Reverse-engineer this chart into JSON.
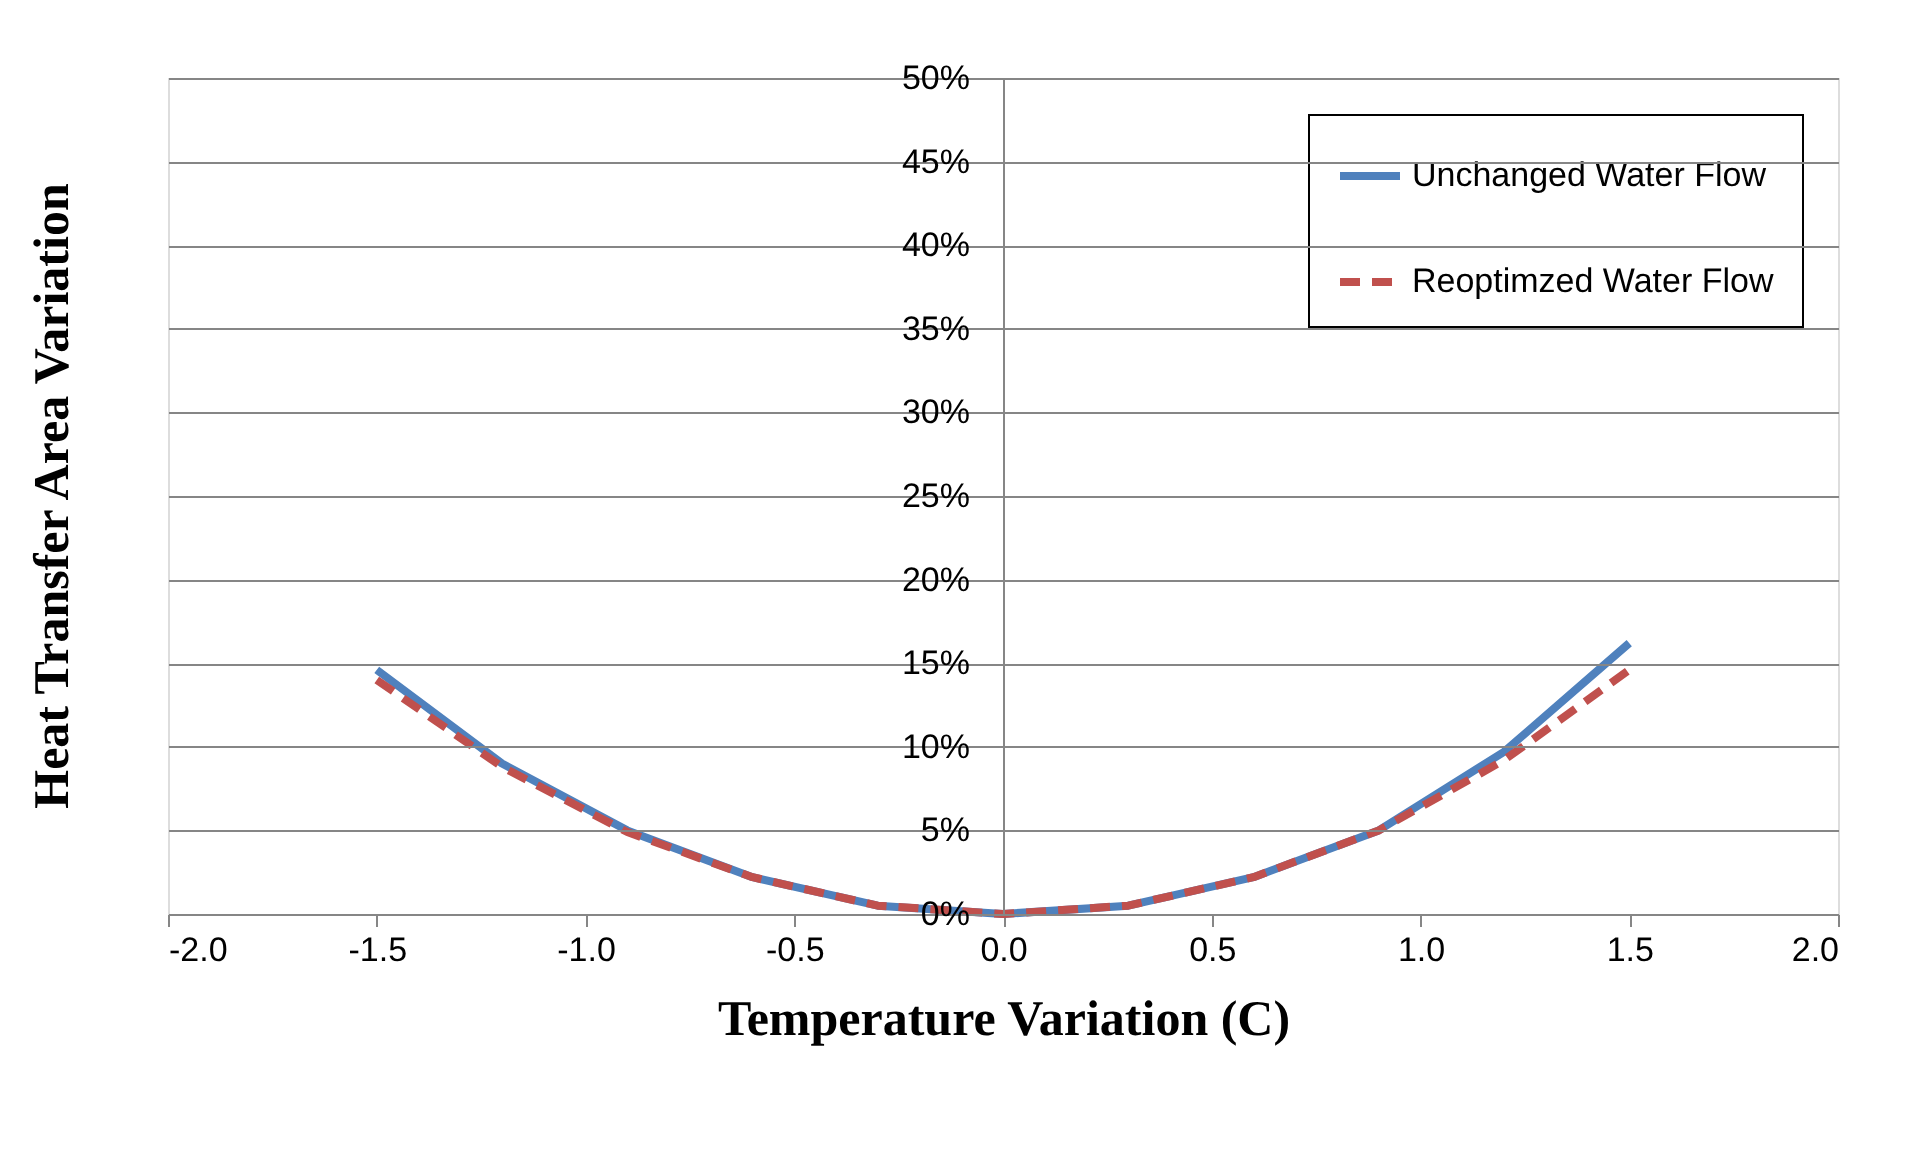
{
  "chart_data": {
    "type": "line",
    "xlabel": "Temperature Variation (C)",
    "ylabel": "Heat Transfer Area Variation",
    "x": [
      -1.5,
      -1.2,
      -0.9,
      -0.6,
      -0.3,
      0.0,
      0.3,
      0.6,
      0.9,
      1.2,
      1.5
    ],
    "series": [
      {
        "name": "Unchanged Water Flow",
        "color": "#4f81bd",
        "line_style": "solid",
        "values": [
          14.6,
          9.0,
          5.0,
          2.2,
          0.5,
          0.0,
          0.5,
          2.2,
          5.0,
          9.7,
          16.2
        ]
      },
      {
        "name": "Reoptimzed Water Flow",
        "color": "#c0504d",
        "line_style": "dashed",
        "values": [
          14.0,
          8.8,
          4.9,
          2.2,
          0.5,
          0.0,
          0.5,
          2.2,
          5.0,
          9.2,
          14.6
        ]
      }
    ],
    "xlim": [
      -2.0,
      2.0
    ],
    "xticks": [
      {
        "value": -2.0,
        "label": "-2.0"
      },
      {
        "value": -1.5,
        "label": "-1.5"
      },
      {
        "value": -1.0,
        "label": "-1.0"
      },
      {
        "value": -0.5,
        "label": "-0.5"
      },
      {
        "value": 0.0,
        "label": "0.0"
      },
      {
        "value": 0.5,
        "label": "0.5"
      },
      {
        "value": 1.0,
        "label": "1.0"
      },
      {
        "value": 1.5,
        "label": "1.5"
      },
      {
        "value": 2.0,
        "label": "2.0"
      }
    ],
    "ylim": [
      0,
      50
    ],
    "yticks": [
      {
        "value": 0,
        "label": "0%"
      },
      {
        "value": 5,
        "label": "5%"
      },
      {
        "value": 10,
        "label": "10%"
      },
      {
        "value": 15,
        "label": "15%"
      },
      {
        "value": 20,
        "label": "20%"
      },
      {
        "value": 25,
        "label": "25%"
      },
      {
        "value": 30,
        "label": "30%"
      },
      {
        "value": 35,
        "label": "35%"
      },
      {
        "value": 40,
        "label": "40%"
      },
      {
        "value": 45,
        "label": "45%"
      },
      {
        "value": 50,
        "label": "50%"
      }
    ],
    "grid": "y",
    "legend": "top right",
    "marker": "none"
  }
}
